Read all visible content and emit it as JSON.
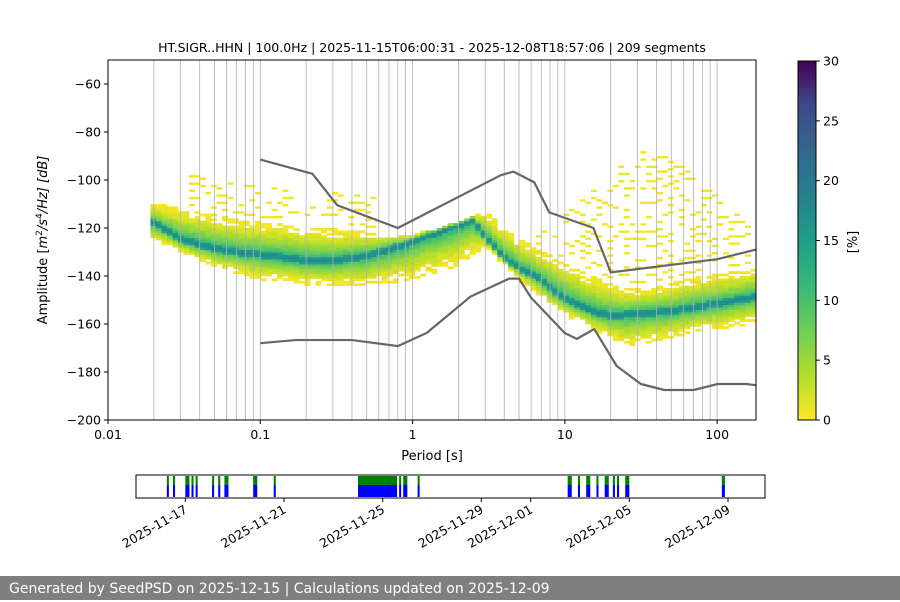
{
  "chart_data": [
    {
      "type": "heatmap",
      "title": "HT.SIGR..HHN | 100.0Hz | 2025-11-15T06:00:31 - 2025-12-08T18:57:06 | 209 segments",
      "xlabel": "Period [s]",
      "ylabel_parts": {
        "prefix": "Amplitude [",
        "m": "m",
        "m_exp": "2",
        "mid": "/s",
        "s_exp": "4",
        "suffix": "/Hz] [dB]"
      },
      "x_scale": "log",
      "xlim": [
        0.01,
        180
      ],
      "ylim": [
        -200,
        -50
      ],
      "x_ticks": [
        {
          "value": 0.01,
          "label": "0.01"
        },
        {
          "value": 0.1,
          "label": "0.1"
        },
        {
          "value": 1,
          "label": "1"
        },
        {
          "value": 10,
          "label": "10"
        },
        {
          "value": 100,
          "label": "100"
        }
      ],
      "y_ticks": [
        {
          "value": -60,
          "label": "−60"
        },
        {
          "value": -80,
          "label": "−80"
        },
        {
          "value": -100,
          "label": "−100"
        },
        {
          "value": -120,
          "label": "−120"
        },
        {
          "value": -140,
          "label": "−140"
        },
        {
          "value": -160,
          "label": "−160"
        },
        {
          "value": -180,
          "label": "−180"
        },
        {
          "value": -200,
          "label": "−200"
        }
      ],
      "grid": "vertical-minor-log",
      "colorbar": {
        "label": "[%]",
        "range": [
          0,
          30
        ],
        "ticks": [
          {
            "value": 0,
            "label": "0"
          },
          {
            "value": 5,
            "label": "5"
          },
          {
            "value": 10,
            "label": "10"
          },
          {
            "value": 15,
            "label": "15"
          },
          {
            "value": 20,
            "label": "20"
          },
          {
            "value": 25,
            "label": "25"
          },
          {
            "value": 30,
            "label": "30"
          }
        ],
        "colormap": "viridis_r"
      },
      "psd_mode_curve": {
        "x": [
          0.02,
          0.03,
          0.05,
          0.08,
          0.12,
          0.2,
          0.3,
          0.5,
          0.8,
          1.2,
          2.0,
          2.5,
          3.0,
          4.0,
          5.0,
          7.0,
          10,
          15,
          20,
          30,
          50,
          80,
          120,
          180
        ],
        "y": [
          -118,
          -125,
          -129,
          -131,
          -132,
          -134,
          -134,
          -132,
          -128,
          -124,
          -119,
          -117,
          -124,
          -133,
          -137,
          -142,
          -150,
          -155,
          -157,
          -156,
          -155,
          -153,
          -151,
          -149
        ]
      },
      "psd_spread_upper": {
        "x": [
          0.02,
          0.05,
          0.1,
          0.2,
          0.5,
          1.0,
          2.0,
          3.0,
          5.0,
          8.0,
          15,
          25,
          40,
          70,
          120,
          180
        ],
        "y": [
          -110,
          -115,
          -118,
          -120,
          -122,
          -123,
          -118,
          -113,
          -125,
          -132,
          -140,
          -146,
          -145,
          -141,
          -139,
          -137
        ]
      },
      "psd_spread_lower": {
        "x": [
          0.02,
          0.05,
          0.1,
          0.2,
          0.5,
          1.0,
          2.0,
          3.0,
          5.0,
          8.0,
          15,
          25,
          40,
          70,
          120,
          180
        ],
        "y": [
          -126,
          -137,
          -142,
          -144,
          -145,
          -142,
          -136,
          -128,
          -142,
          -153,
          -163,
          -170,
          -168,
          -164,
          -162,
          -160
        ]
      },
      "outlier_hump": {
        "x": [
          5,
          10,
          15,
          20,
          25,
          35,
          50,
          80,
          120,
          180
        ],
        "y": [
          -130,
          -115,
          -104,
          -96,
          -90,
          -88,
          -91,
          -102,
          -112,
          -118
        ]
      },
      "nhnm": {
        "x": [
          0.1,
          0.22,
          0.32,
          0.8,
          3.8,
          4.6,
          6.3,
          7.9,
          15.4,
          20,
          100,
          180
        ],
        "y": [
          -91.5,
          -97.4,
          -110.5,
          -120,
          -98,
          -96.5,
          -101,
          -113.5,
          -120,
          -138.5,
          -133,
          -129
        ]
      },
      "nlnm": {
        "x": [
          0.1,
          0.17,
          0.4,
          0.8,
          1.24,
          2.4,
          4.3,
          5.0,
          6.0,
          10,
          12,
          15.6,
          21.9,
          31.6,
          45,
          70,
          101,
          154,
          180
        ],
        "y": [
          -168,
          -166.7,
          -166.7,
          -169.2,
          -163.7,
          -148.6,
          -141.1,
          -141.1,
          -149,
          -163.8,
          -166.2,
          -162.1,
          -177.5,
          -185,
          -187.5,
          -187.5,
          -185,
          -185,
          -185.5
        ]
      }
    },
    {
      "type": "timeline",
      "start": "2025-11-15",
      "end": "2025-12-10",
      "x_ticks": [
        {
          "value": "2025-11-17",
          "label": "2025-11-17"
        },
        {
          "value": "2025-11-21",
          "label": "2025-11-21"
        },
        {
          "value": "2025-11-25",
          "label": "2025-11-25"
        },
        {
          "value": "2025-11-29",
          "label": "2025-11-29"
        },
        {
          "value": "2025-12-01",
          "label": "2025-12-01"
        },
        {
          "value": "2025-12-05",
          "label": "2025-12-05"
        },
        {
          "value": "2025-12-09",
          "label": "2025-12-09"
        }
      ],
      "available_periods": [
        [
          "2025-11-16T06:00",
          "2025-11-16T08:00"
        ],
        [
          "2025-11-16T12:00",
          "2025-11-16T14:00"
        ],
        [
          "2025-11-17T00:00",
          "2025-11-17T04:00"
        ],
        [
          "2025-11-17T06:00",
          "2025-11-17T08:00"
        ],
        [
          "2025-11-17T10:00",
          "2025-11-17T12:00"
        ],
        [
          "2025-11-18T02:00",
          "2025-11-18T04:00"
        ],
        [
          "2025-11-18T08:00",
          "2025-11-18T10:00"
        ],
        [
          "2025-11-18T14:00",
          "2025-11-18T18:00"
        ],
        [
          "2025-11-19T18:00",
          "2025-11-19T22:00"
        ],
        [
          "2025-11-20T14:00",
          "2025-11-20T16:00"
        ],
        [
          "2025-11-24T00:00",
          "2025-11-25T14:00"
        ],
        [
          "2025-11-25T16:00",
          "2025-11-25T18:00"
        ],
        [
          "2025-11-25T20:00",
          "2025-11-26T00:00"
        ],
        [
          "2025-11-26T10:00",
          "2025-11-26T12:00"
        ],
        [
          "2025-12-02T12:00",
          "2025-12-02T16:00"
        ],
        [
          "2025-12-02T22:00",
          "2025-12-03T00:00"
        ],
        [
          "2025-12-03T06:00",
          "2025-12-03T10:00"
        ],
        [
          "2025-12-03T16:00",
          "2025-12-03T18:00"
        ],
        [
          "2025-12-04T00:00",
          "2025-12-04T04:00"
        ],
        [
          "2025-12-04T08:00",
          "2025-12-04T10:00"
        ],
        [
          "2025-12-04T12:00",
          "2025-12-04T14:00"
        ],
        [
          "2025-12-04T20:00",
          "2025-12-05T00:00"
        ],
        [
          "2025-12-08T18:00",
          "2025-12-08T21:00"
        ]
      ],
      "colors": {
        "available": "#008000",
        "used": "#0000ff"
      }
    }
  ],
  "footer": {
    "text": "Generated by SeedPSD on 2025-12-15 | Calculations updated on 2025-12-09"
  }
}
